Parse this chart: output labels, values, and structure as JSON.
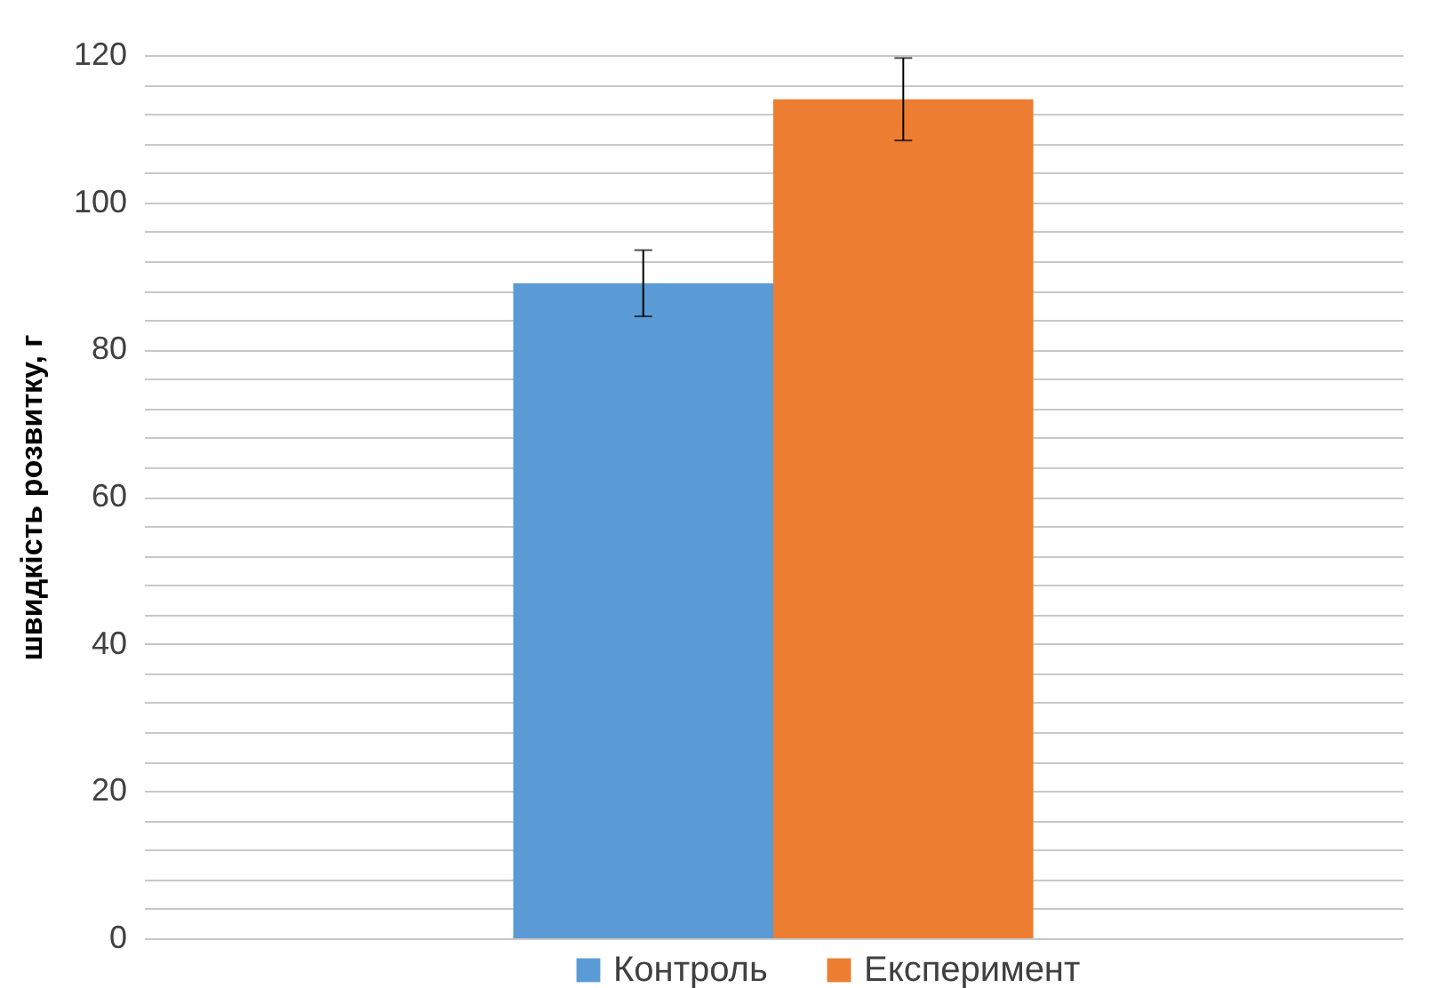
{
  "chart_data": {
    "type": "bar",
    "ylabel": "швидкість розвитку, г",
    "categories": [
      null
    ],
    "series": [
      {
        "name": "Контроль",
        "color": "#5b9bd5",
        "values": [
          89
        ],
        "errors": [
          4.5
        ]
      },
      {
        "name": "Експеримент",
        "color": "#ed7d31",
        "values": [
          114
        ],
        "errors": [
          5.6
        ]
      }
    ],
    "ylim": [
      0,
      120
    ],
    "yticks": [
      0,
      {
        "value": 4,
        "label": null
      },
      {
        "value": 8,
        "label": null
      },
      {
        "value": 12,
        "label": null
      },
      {
        "value": 16,
        "label": null
      },
      20,
      {
        "value": 24,
        "label": null
      },
      {
        "value": 28,
        "label": null
      },
      {
        "value": 32,
        "label": null
      },
      {
        "value": 36,
        "label": null
      },
      40,
      {
        "value": 44,
        "label": null
      },
      {
        "value": 48,
        "label": null
      },
      {
        "value": 52,
        "label": null
      },
      {
        "value": 56,
        "label": null
      },
      60,
      {
        "value": 64,
        "label": null
      },
      {
        "value": 68,
        "label": null
      },
      {
        "value": 72,
        "label": null
      },
      {
        "value": 76,
        "label": null
      },
      80,
      {
        "value": 84,
        "label": null
      },
      {
        "value": 88,
        "label": null
      },
      {
        "value": 92,
        "label": null
      },
      {
        "value": 96,
        "label": null
      },
      100,
      {
        "value": 104,
        "label": null
      },
      {
        "value": 108,
        "label": null
      },
      {
        "value": 112,
        "label": null
      },
      {
        "value": 116,
        "label": null
      },
      120
    ],
    "grid": true,
    "legend": "bottom"
  }
}
